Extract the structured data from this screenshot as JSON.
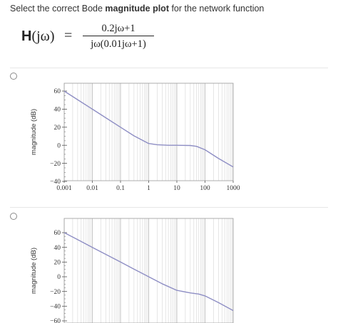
{
  "question": {
    "prefix": "Select the correct Bode ",
    "bold": "magnitude plot",
    "suffix": " for the network function"
  },
  "formula": {
    "lhs_symbol": "H",
    "lhs_arg": "(jω)",
    "equals": "=",
    "numerator": "0.2jω+1",
    "denominator": "jω(0.01jω+1)"
  },
  "options": [
    {
      "chart_data": {
        "type": "line",
        "ylabel": "magnitude (dB)",
        "xscale": "log",
        "xlim": [
          0.001,
          1000
        ],
        "ylim": [
          -40,
          60
        ],
        "xticks": [
          "0.001",
          "0.01",
          "0.1",
          "1",
          "10",
          "100",
          "1000"
        ],
        "yticks": [
          "60",
          "40",
          "20",
          "0",
          "−20",
          "−40"
        ],
        "grid": true,
        "series_color": "#8e8ec4",
        "x": [
          0.001,
          0.003,
          0.01,
          0.03,
          0.1,
          0.3,
          1,
          2,
          5,
          10,
          30,
          50,
          100,
          300,
          1000
        ],
        "y": [
          60,
          50.5,
          40,
          30.5,
          20,
          10.5,
          2,
          0.6,
          0,
          0,
          -0.2,
          -1.2,
          -5,
          -14.5,
          -24
        ]
      }
    },
    {
      "chart_data": {
        "type": "line",
        "ylabel": "magnitude (dB)",
        "xscale": "log",
        "xlim": [
          0.001,
          1000
        ],
        "ylim": [
          -60,
          60
        ],
        "yticks": [
          "60",
          "40",
          "20",
          "0",
          "−20",
          "−40",
          "−60"
        ],
        "grid": true,
        "series_color": "#8e8ec4",
        "x": [
          0.001,
          0.003,
          0.01,
          0.03,
          0.1,
          0.3,
          1,
          3,
          10,
          30,
          60,
          100,
          300,
          1000
        ],
        "y": [
          60,
          50.5,
          40,
          30.5,
          20,
          10.5,
          0,
          -9.5,
          -18.5,
          -22,
          -23.5,
          -26,
          -35,
          -46
        ]
      }
    }
  ]
}
